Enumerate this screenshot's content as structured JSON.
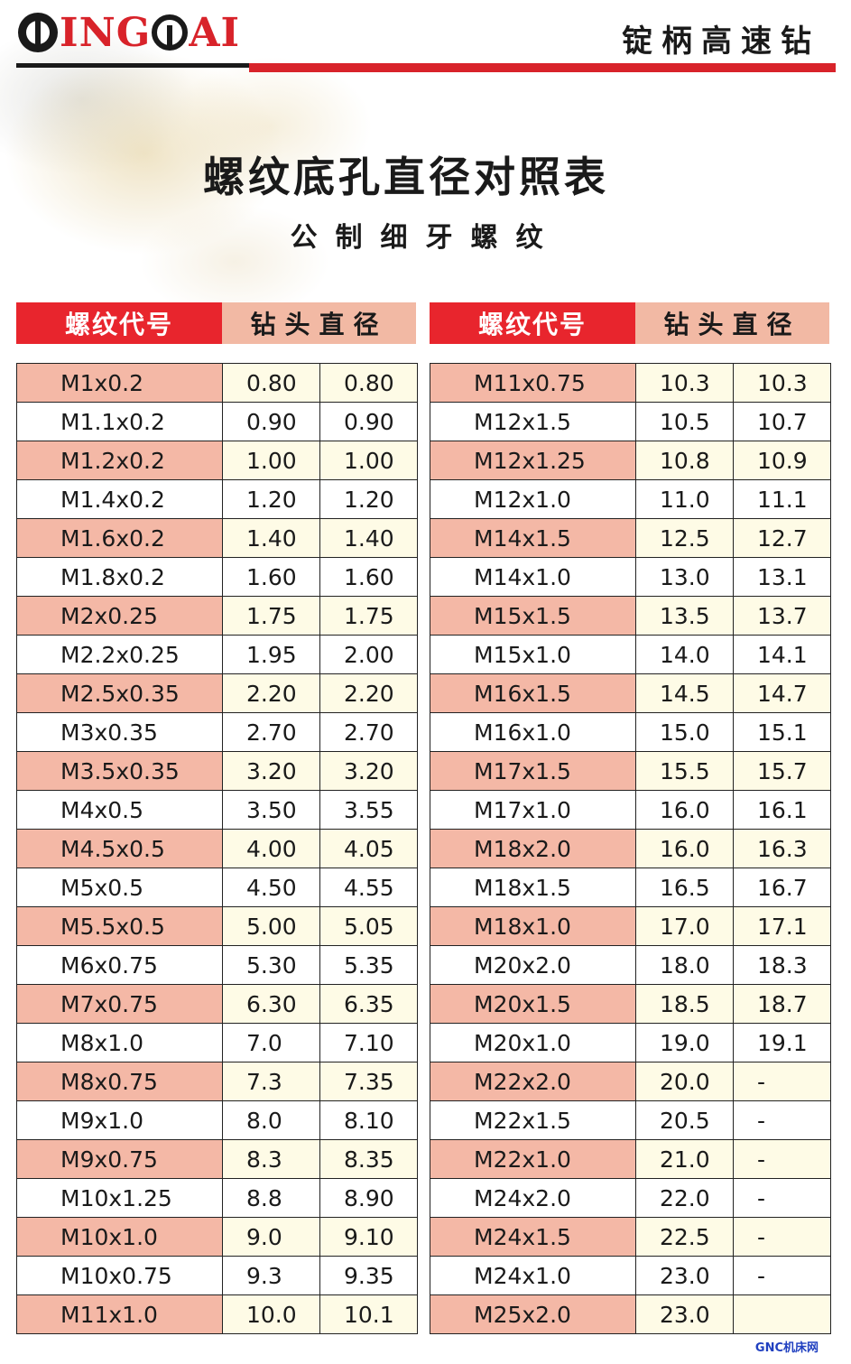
{
  "header": {
    "brand": "INGOAI",
    "brand_color": "#d8232a",
    "product_name": "锭柄高速钻"
  },
  "title": "螺纹底孔直径对照表",
  "subtitle": "公制细牙螺纹",
  "table_headers": {
    "thread_code": "螺纹代号",
    "drill_diameter": "钻头直径"
  },
  "colors": {
    "header_red": "#e8252d",
    "header_salmon": "#f2b9a4",
    "row_salmon": "#f4b8a6",
    "row_cream": "#fefbe6"
  },
  "left_table": [
    [
      "M1x0.2",
      "0.80",
      "0.80"
    ],
    [
      "M1.1x0.2",
      "0.90",
      "0.90"
    ],
    [
      "M1.2x0.2",
      "1.00",
      "1.00"
    ],
    [
      "M1.4x0.2",
      "1.20",
      "1.20"
    ],
    [
      "M1.6x0.2",
      "1.40",
      "1.40"
    ],
    [
      "M1.8x0.2",
      "1.60",
      "1.60"
    ],
    [
      "M2x0.25",
      "1.75",
      "1.75"
    ],
    [
      "M2.2x0.25",
      "1.95",
      "2.00"
    ],
    [
      "M2.5x0.35",
      "2.20",
      "2.20"
    ],
    [
      "M3x0.35",
      "2.70",
      "2.70"
    ],
    [
      "M3.5x0.35",
      "3.20",
      "3.20"
    ],
    [
      "M4x0.5",
      "3.50",
      "3.55"
    ],
    [
      "M4.5x0.5",
      "4.00",
      "4.05"
    ],
    [
      "M5x0.5",
      "4.50",
      "4.55"
    ],
    [
      "M5.5x0.5",
      "5.00",
      "5.05"
    ],
    [
      "M6x0.75",
      "5.30",
      "5.35"
    ],
    [
      "M7x0.75",
      "6.30",
      "6.35"
    ],
    [
      "M8x1.0",
      "7.0",
      "7.10"
    ],
    [
      "M8x0.75",
      "7.3",
      "7.35"
    ],
    [
      "M9x1.0",
      "8.0",
      "8.10"
    ],
    [
      "M9x0.75",
      "8.3",
      "8.35"
    ],
    [
      "M10x1.25",
      "8.8",
      "8.90"
    ],
    [
      "M10x1.0",
      "9.0",
      "9.10"
    ],
    [
      "M10x0.75",
      "9.3",
      "9.35"
    ],
    [
      "M11x1.0",
      "10.0",
      "10.1"
    ]
  ],
  "right_table": [
    [
      "M11x0.75",
      "10.3",
      "10.3"
    ],
    [
      "M12x1.5",
      "10.5",
      "10.7"
    ],
    [
      "M12x1.25",
      "10.8",
      "10.9"
    ],
    [
      "M12x1.0",
      "11.0",
      "11.1"
    ],
    [
      "M14x1.5",
      "12.5",
      "12.7"
    ],
    [
      "M14x1.0",
      "13.0",
      "13.1"
    ],
    [
      "M15x1.5",
      "13.5",
      "13.7"
    ],
    [
      "M15x1.0",
      "14.0",
      "14.1"
    ],
    [
      "M16x1.5",
      "14.5",
      "14.7"
    ],
    [
      "M16x1.0",
      "15.0",
      "15.1"
    ],
    [
      "M17x1.5",
      "15.5",
      "15.7"
    ],
    [
      "M17x1.0",
      "16.0",
      "16.1"
    ],
    [
      "M18x2.0",
      "16.0",
      "16.3"
    ],
    [
      "M18x1.5",
      "16.5",
      "16.7"
    ],
    [
      "M18x1.0",
      "17.0",
      "17.1"
    ],
    [
      "M20x2.0",
      "18.0",
      "18.3"
    ],
    [
      "M20x1.5",
      "18.5",
      "18.7"
    ],
    [
      "M20x1.0",
      "19.0",
      "19.1"
    ],
    [
      "M22x2.0",
      "20.0",
      "-"
    ],
    [
      "M22x1.5",
      "20.5",
      "-"
    ],
    [
      "M22x1.0",
      "21.0",
      "-"
    ],
    [
      "M24x2.0",
      "22.0",
      "-"
    ],
    [
      "M24x1.5",
      "22.5",
      "-"
    ],
    [
      "M24x1.0",
      "23.0",
      "-"
    ],
    [
      "M25x2.0",
      "23.0",
      ""
    ]
  ],
  "watermark": "GNC机床网"
}
